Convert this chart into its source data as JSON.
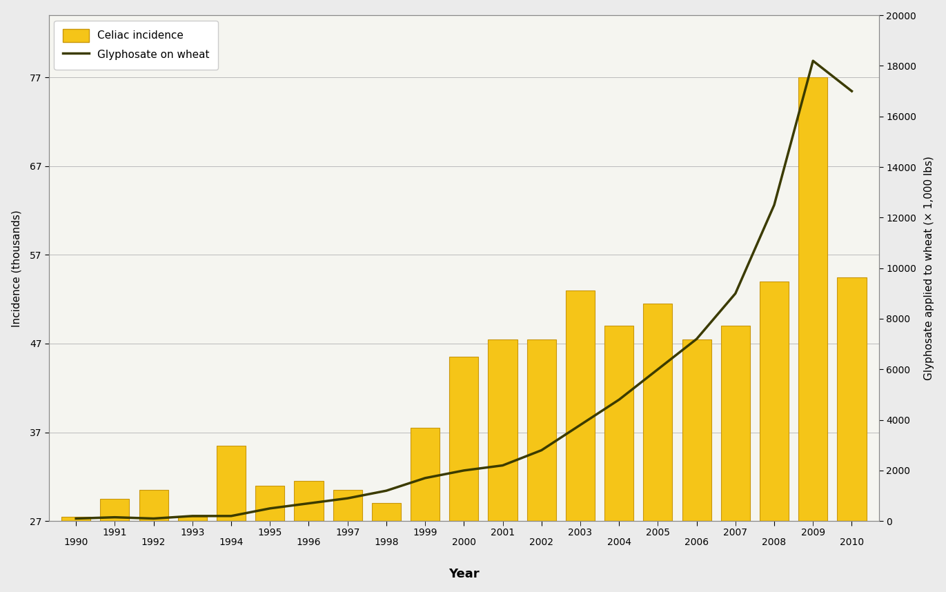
{
  "years": [
    1990,
    1991,
    1992,
    1993,
    1994,
    1995,
    1996,
    1997,
    1998,
    1999,
    2000,
    2001,
    2002,
    2003,
    2004,
    2005,
    2006,
    2007,
    2008,
    2009,
    2010
  ],
  "celiac_incidence": [
    27.5,
    29.5,
    30.5,
    27.5,
    35.5,
    31.0,
    31.5,
    30.5,
    29.0,
    37.5,
    45.5,
    47.5,
    47.5,
    53.0,
    49.0,
    51.5,
    47.5,
    49.0,
    54.0,
    77.0,
    54.5
  ],
  "glyphosate": [
    100,
    150,
    100,
    200,
    200,
    500,
    700,
    900,
    1200,
    1700,
    2000,
    2200,
    2800,
    3800,
    4800,
    6000,
    7200,
    9000,
    12500,
    18200,
    17000
  ],
  "bar_color": "#F5C518",
  "bar_edgecolor": "#C8960C",
  "line_color": "#3B3B00",
  "background_color": "#EBEBEB",
  "plot_background": "#F5F5F0",
  "ylabel_left": "Incidence (thousands)",
  "ylabel_right": "Glyphosate applied to wheat (× 1,000 lbs)",
  "xlabel": "Year",
  "legend_celiac": "Celiac incidence",
  "legend_glyph": "Glyphosate on wheat",
  "yticks_left": [
    27,
    37,
    47,
    57,
    67,
    77
  ],
  "ylim_left": [
    27,
    84
  ],
  "yticks_right": [
    0,
    2000,
    4000,
    6000,
    8000,
    10000,
    12000,
    14000,
    16000,
    18000,
    20000
  ],
  "ylim_right": [
    0,
    20000
  ],
  "axis_fontsize": 11,
  "tick_fontsize": 10,
  "xlabel_fontsize": 13
}
